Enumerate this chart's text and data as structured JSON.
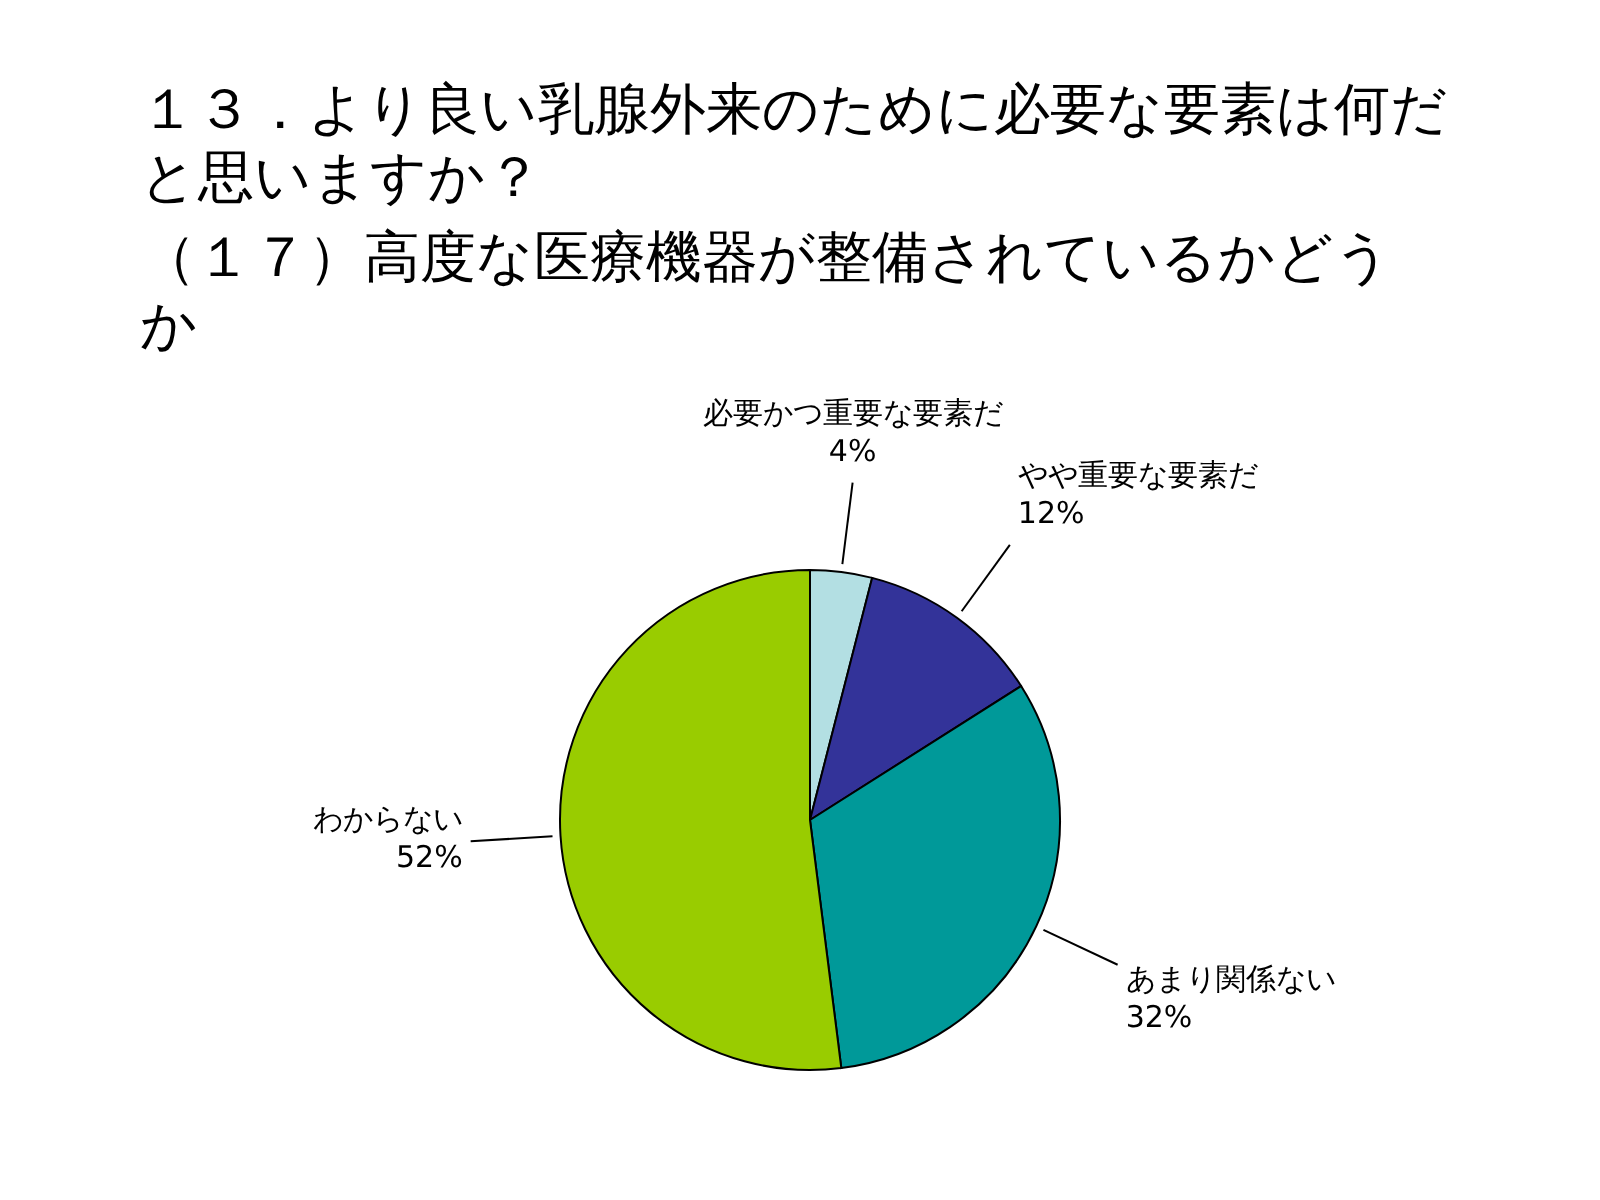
{
  "chart_data": {
    "type": "pie",
    "title": "１３．より良い乳腺外来のために必要な要素は何だと思いますか？",
    "subtitle": "（１７）高度な医療機器が整備されているかどうか",
    "categories": [
      "必要かつ重要な要素だ",
      "やや重要な要素だ",
      "あまり関係ない",
      "わからない"
    ],
    "values": [
      4,
      12,
      32,
      52
    ],
    "value_labels": [
      "4%",
      "12%",
      "32%",
      "52%"
    ],
    "colors": [
      "#b3dfe3",
      "#333399",
      "#009999",
      "#99cc00"
    ]
  }
}
